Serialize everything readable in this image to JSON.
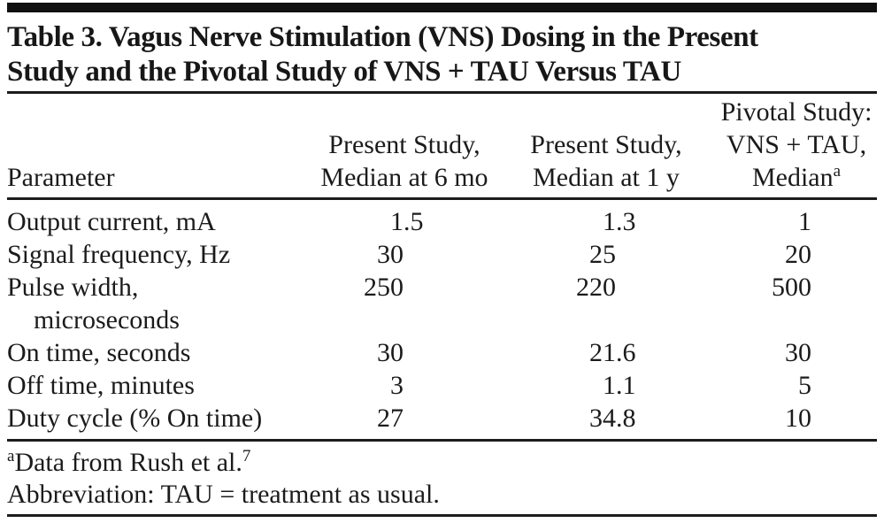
{
  "title": {
    "line1": "Table 3. Vagus Nerve Stimulation (VNS) Dosing in the Present",
    "line2": "Study and the Pivotal Study of VNS + TAU Versus TAU"
  },
  "table": {
    "headers": {
      "parameter": "Parameter",
      "col6mo": {
        "line1": "Present Study,",
        "line2": "Median at 6 mo"
      },
      "col1y": {
        "line1": "Present Study,",
        "line2": "Median at 1 y"
      },
      "pivotal": {
        "line1": "Pivotal Study:",
        "line2": "VNS + TAU,",
        "line3": "Median",
        "sup": "a"
      }
    },
    "rows": [
      {
        "param": "Output current, mA",
        "v6mo": "1.5",
        "v1y": "1.3",
        "pivotal": "1"
      },
      {
        "param": "Signal frequency, Hz",
        "v6mo": "30",
        "v1y": "25",
        "pivotal": "20"
      },
      {
        "param": "Pulse width,",
        "param_line2": "microseconds",
        "v6mo": "250",
        "v1y": "220",
        "pivotal": "500"
      },
      {
        "param": "On time, seconds",
        "v6mo": "30",
        "v1y": "21.6",
        "pivotal": "30"
      },
      {
        "param": "Off time, minutes",
        "v6mo": "3",
        "v1y": "1.1",
        "pivotal": "5"
      },
      {
        "param": "Duty cycle (% On time)",
        "v6mo": "27",
        "v1y": "34.8",
        "pivotal": "10"
      }
    ]
  },
  "footnotes": {
    "note_a": {
      "sup_lead": "a",
      "text": "Data from Rush et al.",
      "sup_trail": "7"
    },
    "abbreviation": "Abbreviation: TAU = treatment as usual."
  },
  "colors": {
    "background": "#ffffff",
    "text": "#1b1b1b",
    "rule": "#1c1c1c",
    "top_bar": "#101010"
  }
}
